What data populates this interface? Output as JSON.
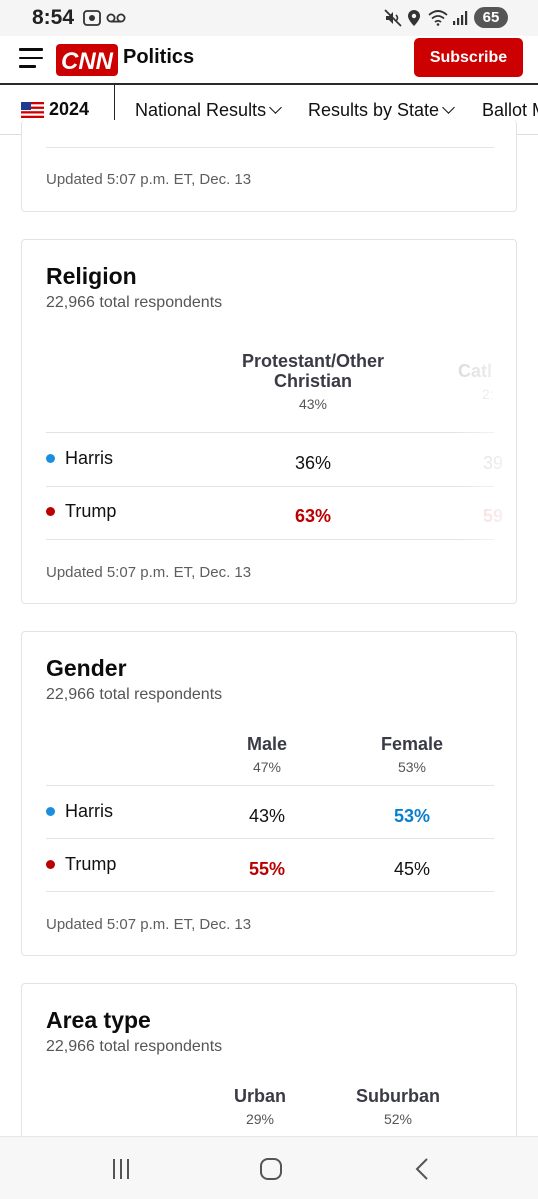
{
  "status_bar": {
    "time": "8:54",
    "battery": "65",
    "icons": [
      "screenshot-icon",
      "voicemail-icon",
      "mute-icon",
      "location-icon",
      "wifi-icon",
      "signal-icon",
      "battery-icon"
    ]
  },
  "header": {
    "logo_text": "CNN",
    "section": "Politics",
    "subscribe_label": "Subscribe",
    "brand_color": "#cc0000"
  },
  "nav": {
    "year": "2024",
    "items": [
      {
        "label": "National Results"
      },
      {
        "label": "Results by State"
      },
      {
        "label": "Ballot M"
      }
    ]
  },
  "top_card": {
    "updated": "Updated 5:07 p.m. ET, Dec. 13"
  },
  "religion": {
    "title": "Religion",
    "respondents": "22,966 total respondents",
    "col1_head_line1": "Protestant/Other",
    "col1_head_line2": "Christian",
    "col1_pct": "43%",
    "col2_head": "Catl",
    "col2_pct": "2:",
    "harris_label": "Harris",
    "trump_label": "Trump",
    "harris_col1": "36%",
    "harris_col2": "39",
    "trump_col1": "63%",
    "trump_col2": "59",
    "updated": "Updated 5:07 p.m. ET, Dec. 13"
  },
  "gender": {
    "title": "Gender",
    "respondents": "22,966 total respondents",
    "col1_head": "Male",
    "col1_pct": "47%",
    "col2_head": "Female",
    "col2_pct": "53%",
    "harris_label": "Harris",
    "trump_label": "Trump",
    "harris_col1": "43%",
    "harris_col2": "53%",
    "trump_col1": "55%",
    "trump_col2": "45%",
    "updated": "Updated 5:07 p.m. ET, Dec. 13"
  },
  "area": {
    "title": "Area type",
    "respondents": "22,966 total respondents",
    "col1_head": "Urban",
    "col1_pct": "29%",
    "col2_head": "Suburban",
    "col2_pct": "52%"
  },
  "colors": {
    "harris": "#1a8fe0",
    "trump": "#bb0000"
  }
}
